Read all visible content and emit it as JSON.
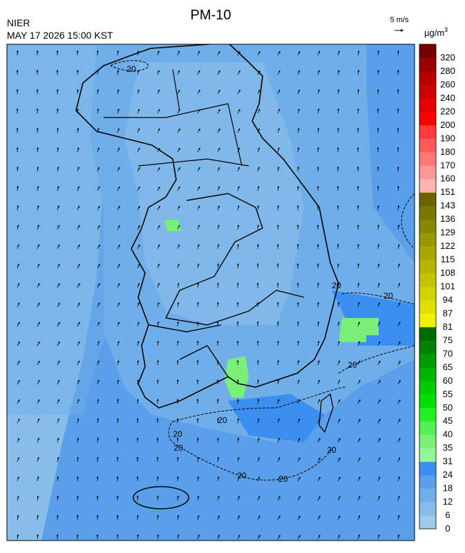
{
  "header": {
    "title": "PM-10",
    "org": "NIER",
    "timestamp": "MAY 17 2026 15:00 KST",
    "wind_scale": "5 m/s",
    "unit": "µg/m",
    "unit_sup": "3"
  },
  "colorbar": {
    "labels": [
      0,
      6,
      12,
      18,
      24,
      31,
      35,
      40,
      45,
      50,
      55,
      60,
      65,
      70,
      75,
      81,
      87,
      94,
      101,
      108,
      115,
      122,
      129,
      136,
      143,
      151,
      160,
      170,
      180,
      190,
      200,
      220,
      240,
      260,
      280,
      320
    ],
    "colors": [
      "#9fcbe8",
      "#87bde8",
      "#70aeea",
      "#5a9fe9",
      "#3a8ff0",
      "#96f596",
      "#78f078",
      "#55f055",
      "#22f022",
      "#00e000",
      "#00cc00",
      "#00b400",
      "#009c00",
      "#008400",
      "#006a00",
      "#f0f000",
      "#e0e000",
      "#d2d200",
      "#c4c400",
      "#b6b600",
      "#a8a800",
      "#989800",
      "#888800",
      "#787800",
      "#686400",
      "#ffb4b4",
      "#ff9898",
      "#ff7878",
      "#ff5a5a",
      "#ff3a3a",
      "#ff0000",
      "#e80000",
      "#d00000",
      "#b80000",
      "#9c0000",
      "#780000"
    ]
  },
  "contour_labels": [
    "20",
    "20",
    "20",
    "20",
    "20",
    "20",
    "20",
    "20",
    "20",
    "20"
  ]
}
